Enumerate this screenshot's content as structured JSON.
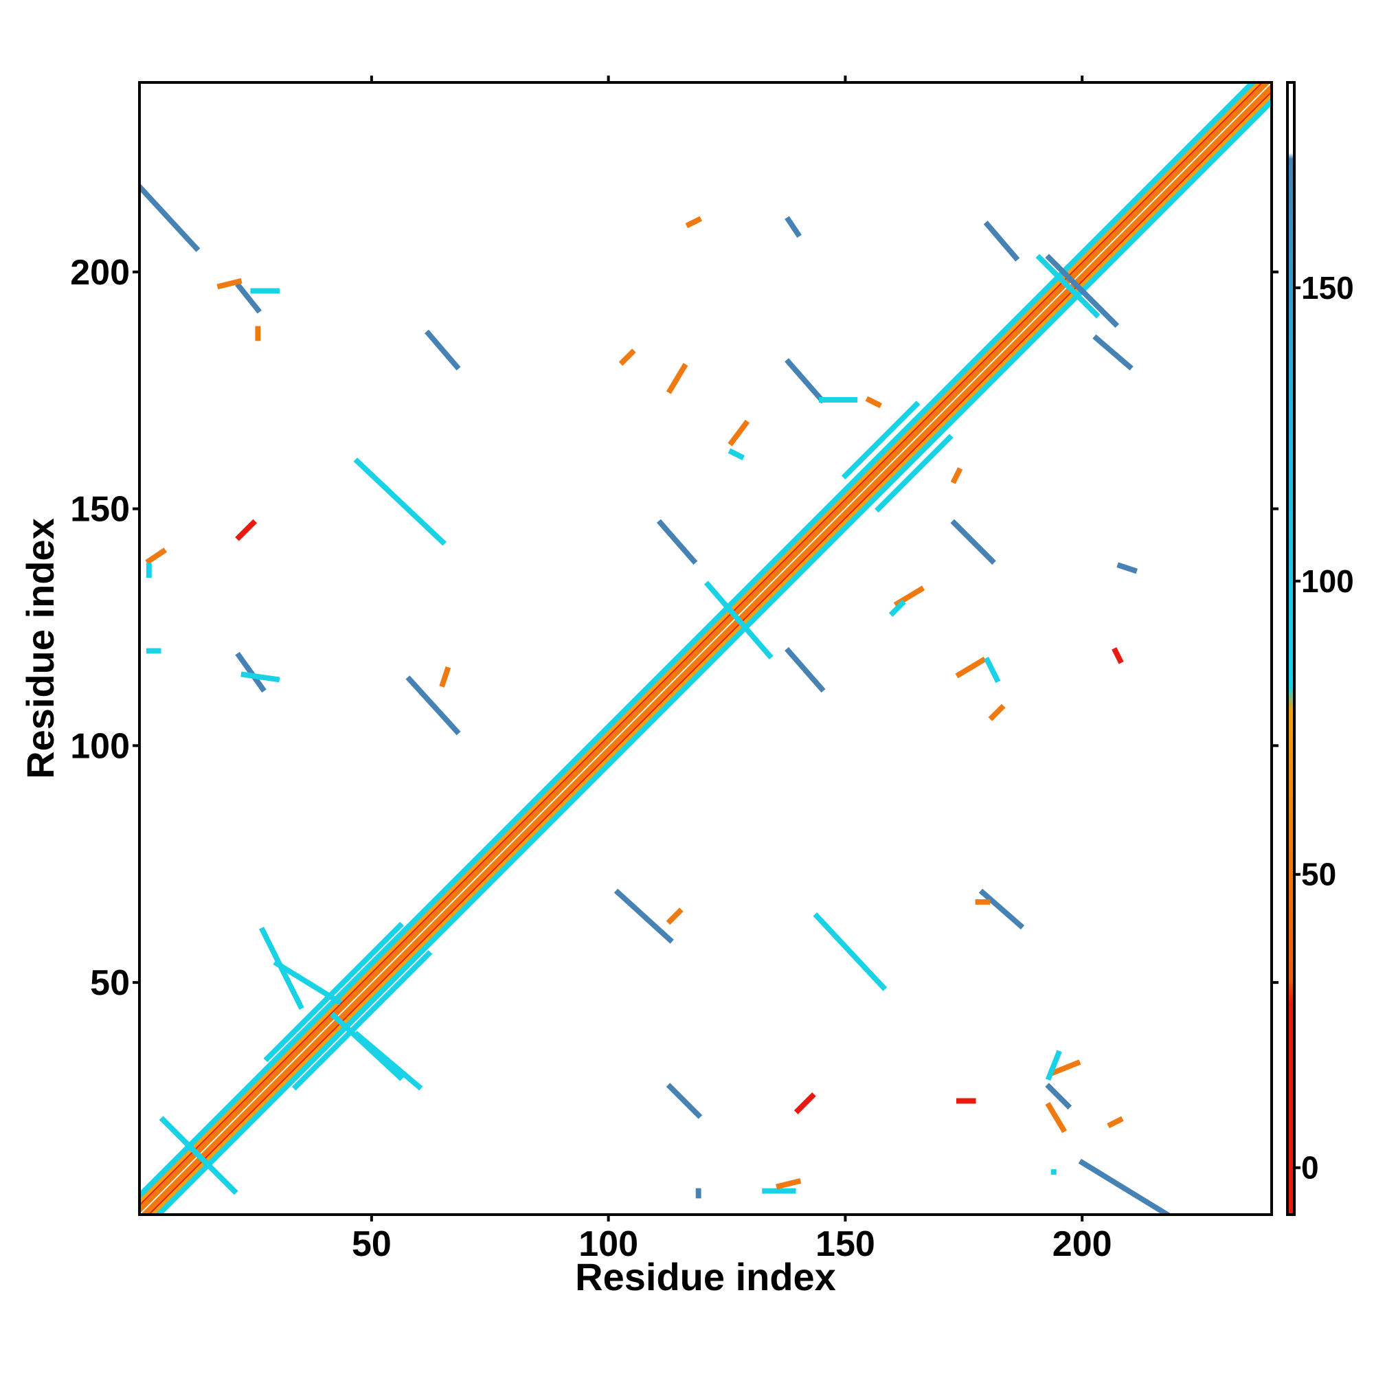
{
  "chart_data": {
    "type": "heatmap",
    "title": "",
    "xlabel": "Residue index",
    "ylabel": "Residue index",
    "xlim": [
      1,
      240
    ],
    "ylim": [
      1,
      240
    ],
    "xticks": [
      50,
      100,
      150,
      200
    ],
    "yticks": [
      50,
      100,
      150,
      200
    ],
    "colorbar": {
      "range": [
        -8,
        185
      ],
      "ticks": [
        0,
        50,
        100,
        150
      ],
      "bands": [
        {
          "from": -8,
          "to": 30,
          "color": "#e8190f"
        },
        {
          "from": 30,
          "to": 80,
          "color": "#f07a10"
        },
        {
          "from": 80,
          "to": 180,
          "color": "#19d2e6"
        },
        {
          "from": 180,
          "to": 185,
          "color": "#ffffff"
        }
      ],
      "gradient_stops": [
        {
          "value": -8,
          "color": "#e8190f"
        },
        {
          "value": 28,
          "color": "#e8190f"
        },
        {
          "value": 32,
          "color": "#f05a10"
        },
        {
          "value": 78,
          "color": "#f0a010"
        },
        {
          "value": 82,
          "color": "#19d2e6"
        },
        {
          "value": 130,
          "color": "#2ab4dc"
        },
        {
          "value": 172,
          "color": "#4682b4"
        },
        {
          "value": 173,
          "color": "#ffffff"
        },
        {
          "value": 185,
          "color": "#ffffff"
        }
      ]
    },
    "colors": {
      "red": "#e8190f",
      "orange": "#f07a10",
      "lightorange": "#f5a010",
      "cyan": "#19d2e6",
      "steelblue": "#4682b4"
    },
    "segments": [
      {
        "x1": 1,
        "y1": 3,
        "x2": 239,
        "y2": 241,
        "color": "red"
      },
      {
        "x1": 3,
        "y1": 1,
        "x2": 241,
        "y2": 239,
        "color": "red"
      },
      {
        "x1": 1,
        "y1": 2,
        "x2": 240,
        "y2": 241,
        "color": "orange"
      },
      {
        "x1": 2,
        "y1": 1,
        "x2": 241,
        "y2": 240,
        "color": "orange"
      },
      {
        "x1": 1,
        "y1": 4,
        "x2": 238,
        "y2": 241,
        "color": "lightorange"
      },
      {
        "x1": 4,
        "y1": 1,
        "x2": 241,
        "y2": 238,
        "color": "lightorange"
      },
      {
        "x1": 1,
        "y1": 5,
        "x2": 236,
        "y2": 240,
        "color": "cyan"
      },
      {
        "x1": 5,
        "y1": 1,
        "x2": 240,
        "y2": 236,
        "color": "cyan"
      },
      {
        "x1": 28,
        "y1": 34,
        "x2": 56,
        "y2": 62,
        "color": "cyan"
      },
      {
        "x1": 34,
        "y1": 28,
        "x2": 62,
        "y2": 56,
        "color": "cyan"
      },
      {
        "x1": 150,
        "y1": 157,
        "x2": 165,
        "y2": 172,
        "color": "cyan"
      },
      {
        "x1": 157,
        "y1": 150,
        "x2": 172,
        "y2": 165,
        "color": "cyan"
      },
      {
        "x1": 6,
        "y1": 21,
        "x2": 21,
        "y2": 6,
        "color": "steelblue"
      },
      {
        "x1": 6,
        "y1": 21,
        "x2": 21,
        "y2": 6,
        "color": "cyan"
      },
      {
        "x1": 121,
        "y1": 134,
        "x2": 134,
        "y2": 119,
        "color": "cyan"
      },
      {
        "x1": 191,
        "y1": 203,
        "x2": 203,
        "y2": 191,
        "color": "cyan"
      },
      {
        "x1": 193,
        "y1": 203,
        "x2": 207,
        "y2": 189,
        "color": "steelblue"
      },
      {
        "x1": 1,
        "y1": 218,
        "x2": 13,
        "y2": 205,
        "color": "steelblue"
      },
      {
        "x1": 22,
        "y1": 197,
        "x2": 26,
        "y2": 192,
        "color": "steelblue"
      },
      {
        "x1": 62,
        "y1": 187,
        "x2": 68,
        "y2": 180,
        "color": "steelblue"
      },
      {
        "x1": 180,
        "y1": 210,
        "x2": 186,
        "y2": 203,
        "color": "steelblue"
      },
      {
        "x1": 203,
        "y1": 186,
        "x2": 210,
        "y2": 180,
        "color": "steelblue"
      },
      {
        "x1": 138,
        "y1": 181,
        "x2": 145,
        "y2": 173,
        "color": "steelblue"
      },
      {
        "x1": 138,
        "y1": 211,
        "x2": 140,
        "y2": 208,
        "color": "steelblue"
      },
      {
        "x1": 111,
        "y1": 147,
        "x2": 118,
        "y2": 139,
        "color": "steelblue"
      },
      {
        "x1": 173,
        "y1": 147,
        "x2": 181,
        "y2": 139,
        "color": "steelblue"
      },
      {
        "x1": 208,
        "y1": 138,
        "x2": 211,
        "y2": 137,
        "color": "steelblue"
      },
      {
        "x1": 22,
        "y1": 119,
        "x2": 27,
        "y2": 112,
        "color": "steelblue"
      },
      {
        "x1": 58,
        "y1": 114,
        "x2": 68,
        "y2": 103,
        "color": "steelblue"
      },
      {
        "x1": 138,
        "y1": 120,
        "x2": 145,
        "y2": 112,
        "color": "steelblue"
      },
      {
        "x1": 102,
        "y1": 69,
        "x2": 113,
        "y2": 59,
        "color": "steelblue"
      },
      {
        "x1": 179,
        "y1": 69,
        "x2": 187,
        "y2": 62,
        "color": "steelblue"
      },
      {
        "x1": 113,
        "y1": 28,
        "x2": 119,
        "y2": 22,
        "color": "steelblue"
      },
      {
        "x1": 193,
        "y1": 28,
        "x2": 197,
        "y2": 24,
        "color": "steelblue"
      },
      {
        "x1": 200,
        "y1": 12,
        "x2": 218,
        "y2": 1,
        "color": "steelblue"
      },
      {
        "x1": 18,
        "y1": 197,
        "x2": 22,
        "y2": 198,
        "color": "orange"
      },
      {
        "x1": 25,
        "y1": 196,
        "x2": 30,
        "y2": 196,
        "color": "cyan"
      },
      {
        "x1": 26,
        "y1": 188,
        "x2": 26,
        "y2": 186,
        "color": "orange"
      },
      {
        "x1": 3,
        "y1": 139,
        "x2": 6,
        "y2": 141,
        "color": "orange"
      },
      {
        "x1": 3,
        "y1": 136,
        "x2": 3,
        "y2": 138,
        "color": "cyan"
      },
      {
        "x1": 22,
        "y1": 144,
        "x2": 25,
        "y2": 147,
        "color": "red"
      },
      {
        "x1": 47,
        "y1": 160,
        "x2": 65,
        "y2": 143,
        "color": "cyan"
      },
      {
        "x1": 117,
        "y1": 210,
        "x2": 119,
        "y2": 211,
        "color": "orange"
      },
      {
        "x1": 103,
        "y1": 181,
        "x2": 105,
        "y2": 183,
        "color": "orange"
      },
      {
        "x1": 113,
        "y1": 175,
        "x2": 116,
        "y2": 180,
        "color": "orange"
      },
      {
        "x1": 126,
        "y1": 164,
        "x2": 129,
        "y2": 168,
        "color": "orange"
      },
      {
        "x1": 126,
        "y1": 162,
        "x2": 128,
        "y2": 161,
        "color": "cyan"
      },
      {
        "x1": 145,
        "y1": 173,
        "x2": 152,
        "y2": 173,
        "color": "cyan"
      },
      {
        "x1": 155,
        "y1": 173,
        "x2": 157,
        "y2": 172,
        "color": "orange"
      },
      {
        "x1": 161,
        "y1": 130,
        "x2": 166,
        "y2": 133,
        "color": "orange"
      },
      {
        "x1": 160,
        "y1": 128,
        "x2": 162,
        "y2": 130,
        "color": "cyan"
      },
      {
        "x1": 173,
        "y1": 156,
        "x2": 174,
        "y2": 158,
        "color": "orange"
      },
      {
        "x1": 174,
        "y1": 115,
        "x2": 179,
        "y2": 118,
        "color": "orange"
      },
      {
        "x1": 180,
        "y1": 118,
        "x2": 182,
        "y2": 114,
        "color": "cyan"
      },
      {
        "x1": 181,
        "y1": 106,
        "x2": 183,
        "y2": 108,
        "color": "orange"
      },
      {
        "x1": 207,
        "y1": 120,
        "x2": 208,
        "y2": 118,
        "color": "red"
      },
      {
        "x1": 65,
        "y1": 113,
        "x2": 66,
        "y2": 116,
        "color": "orange"
      },
      {
        "x1": 23,
        "y1": 115,
        "x2": 30,
        "y2": 114,
        "color": "cyan"
      },
      {
        "x1": 3,
        "y1": 120,
        "x2": 5,
        "y2": 120,
        "color": "cyan"
      },
      {
        "x1": 113,
        "y1": 63,
        "x2": 115,
        "y2": 65,
        "color": "orange"
      },
      {
        "x1": 27,
        "y1": 61,
        "x2": 35,
        "y2": 45,
        "color": "cyan"
      },
      {
        "x1": 30,
        "y1": 54,
        "x2": 43,
        "y2": 46,
        "color": "cyan"
      },
      {
        "x1": 42,
        "y1": 43,
        "x2": 56,
        "y2": 30,
        "color": "cyan"
      },
      {
        "x1": 47,
        "y1": 39,
        "x2": 60,
        "y2": 28,
        "color": "cyan"
      },
      {
        "x1": 144,
        "y1": 64,
        "x2": 158,
        "y2": 49,
        "color": "cyan"
      },
      {
        "x1": 178,
        "y1": 67,
        "x2": 180,
        "y2": 67,
        "color": "orange"
      },
      {
        "x1": 140,
        "y1": 23,
        "x2": 143,
        "y2": 26,
        "color": "red"
      },
      {
        "x1": 174,
        "y1": 25,
        "x2": 177,
        "y2": 25,
        "color": "red"
      },
      {
        "x1": 193,
        "y1": 24,
        "x2": 196,
        "y2": 19,
        "color": "orange"
      },
      {
        "x1": 194,
        "y1": 31,
        "x2": 199,
        "y2": 33,
        "color": "orange"
      },
      {
        "x1": 193,
        "y1": 30,
        "x2": 195,
        "y2": 35,
        "color": "cyan"
      },
      {
        "x1": 206,
        "y1": 20,
        "x2": 208,
        "y2": 21,
        "color": "orange"
      },
      {
        "x1": 194,
        "y1": 10,
        "x2": 194,
        "y2": 10,
        "color": "cyan"
      },
      {
        "x1": 133,
        "y1": 6,
        "x2": 139,
        "y2": 6,
        "color": "cyan"
      },
      {
        "x1": 136,
        "y1": 7,
        "x2": 140,
        "y2": 8,
        "color": "orange"
      },
      {
        "x1": 119,
        "y1": 5,
        "x2": 119,
        "y2": 6,
        "color": "steelblue"
      }
    ]
  }
}
